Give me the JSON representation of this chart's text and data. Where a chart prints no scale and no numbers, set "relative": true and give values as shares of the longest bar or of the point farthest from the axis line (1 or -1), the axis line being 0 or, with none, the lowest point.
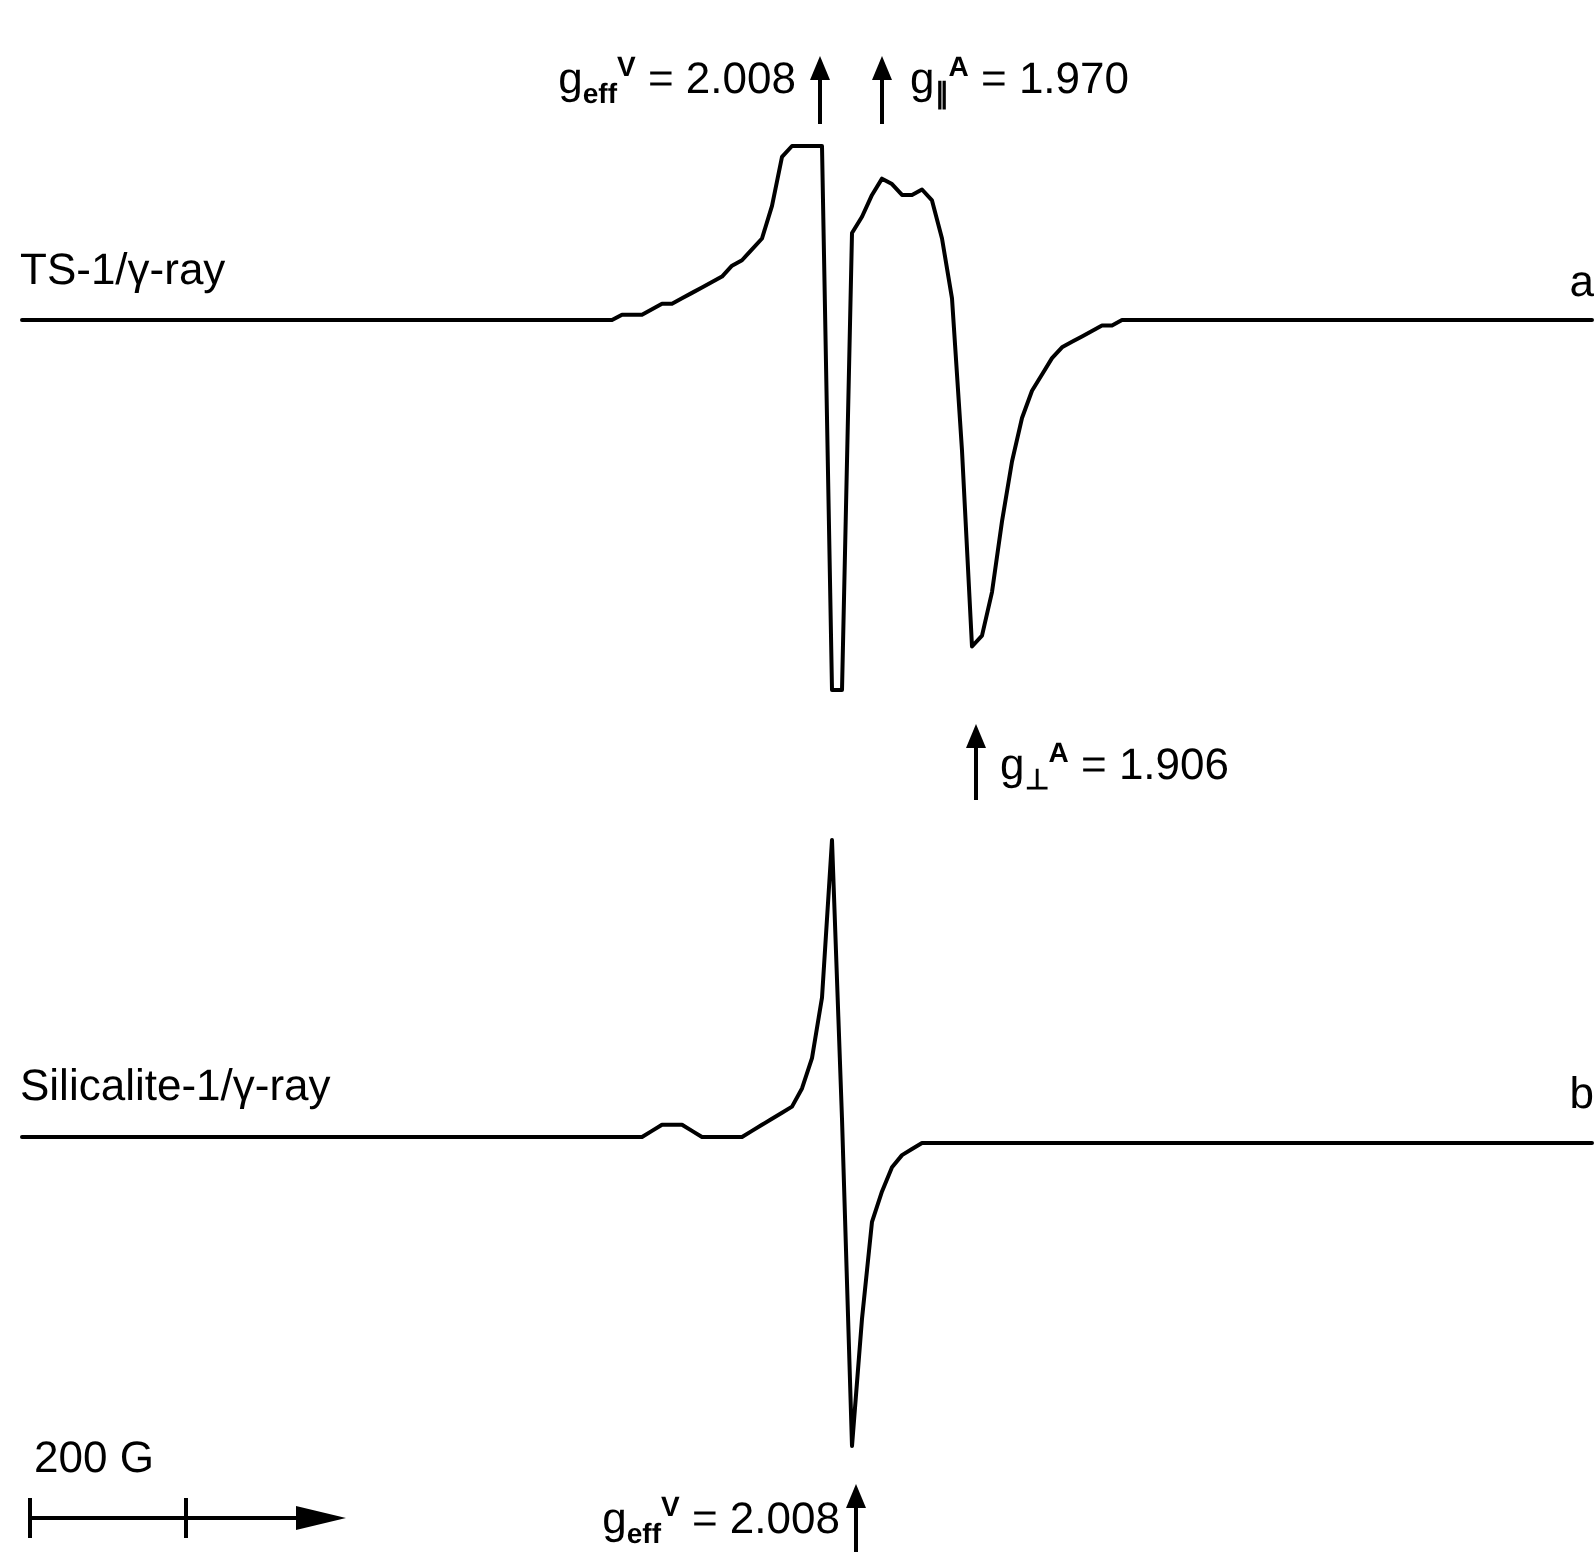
{
  "chart_data": [
    {
      "type": "line",
      "relative": true,
      "categories": [
        null,
        null,
        null,
        null,
        null,
        null,
        null,
        null,
        null,
        null,
        null,
        null,
        null,
        null,
        null,
        null,
        null,
        null,
        null,
        null,
        null,
        null,
        null,
        null,
        null,
        null,
        null,
        null,
        null,
        null,
        null,
        null,
        null,
        null,
        null,
        null,
        null,
        null,
        null,
        null,
        null,
        null,
        null,
        null,
        null,
        null,
        null,
        null,
        null,
        null,
        null,
        null,
        null,
        null,
        null,
        null,
        null,
        null,
        null,
        null,
        null,
        null,
        null,
        null,
        null,
        null,
        null,
        null,
        null,
        null,
        null,
        null,
        null,
        null,
        null,
        null,
        null,
        null,
        null,
        null,
        null,
        null,
        null,
        null,
        null,
        null,
        null,
        null,
        null,
        null,
        null,
        null,
        null,
        null,
        null,
        null,
        null,
        null,
        null,
        null,
        null,
        null,
        null,
        null,
        null,
        null,
        null,
        null,
        null,
        null,
        null,
        null,
        null,
        null,
        null,
        null,
        null,
        null,
        null,
        null,
        null,
        null,
        null,
        null,
        null,
        null,
        null,
        null,
        null,
        null,
        null,
        null,
        null,
        null,
        null,
        null,
        null,
        null,
        null,
        null,
        null,
        null,
        null,
        null,
        null,
        null,
        null,
        null,
        null,
        null,
        null,
        null,
        null,
        null,
        null,
        null,
        null,
        null
      ],
      "series": [
        {
          "name": "TS-1/γ-ray",
          "color": "#000000",
          "values": [
            0.68,
            0.68,
            0.68,
            0.68,
            0.68,
            0.68,
            0.68,
            0.68,
            0.68,
            0.68,
            0.68,
            0.68,
            0.68,
            0.68,
            0.68,
            0.68,
            0.68,
            0.68,
            0.68,
            0.68,
            0.68,
            0.68,
            0.68,
            0.68,
            0.68,
            0.68,
            0.68,
            0.68,
            0.68,
            0.68,
            0.68,
            0.68,
            0.68,
            0.68,
            0.68,
            0.68,
            0.68,
            0.68,
            0.68,
            0.68,
            0.68,
            0.68,
            0.68,
            0.68,
            0.68,
            0.68,
            0.68,
            0.68,
            0.68,
            0.68,
            0.68,
            0.68,
            0.68,
            0.68,
            0.68,
            0.68,
            0.68,
            0.68,
            0.68,
            0.68,
            0.69,
            0.69,
            0.69,
            0.7,
            0.71,
            0.71,
            0.72,
            0.73,
            0.74,
            0.75,
            0.76,
            0.78,
            0.79,
            0.81,
            0.83,
            0.89,
            0.98,
            1,
            1,
            1,
            1,
            0,
            0,
            0.84,
            0.87,
            0.91,
            0.94,
            0.93,
            0.91,
            0.91,
            0.92,
            0.9,
            0.83,
            0.72,
            0.44,
            0.08,
            0.1,
            0.18,
            0.31,
            0.42,
            0.5,
            0.55,
            0.58,
            0.61,
            0.63,
            0.64,
            0.65,
            0.66,
            0.67,
            0.67,
            0.68,
            0.68,
            0.68,
            0.68,
            0.68,
            0.68,
            0.68,
            0.68,
            0.68,
            0.68,
            0.68,
            0.68,
            0.68,
            0.68,
            0.68,
            0.68,
            0.68,
            0.68,
            0.68,
            0.68,
            0.68,
            0.68,
            0.68,
            0.68,
            0.68,
            0.68,
            0.68,
            0.68,
            0.68,
            0.68,
            0.68,
            0.68,
            0.68,
            0.68,
            0.68,
            0.68,
            0.68,
            0.68,
            0.68,
            0.68,
            0.68,
            0.68,
            0.68,
            0.68,
            0.68,
            0.68,
            0.68,
            0.68
          ]
        }
      ],
      "annotations": [
        "g$_{eff}$$^{V}$ = 2.008",
        "g$_{∥}$$^{A}$ = 1.970",
        "g$_{⊥}$$^{A}$ = 1.906",
        "a"
      ]
    },
    {
      "type": "line",
      "relative": true,
      "categories": [
        null,
        null,
        null,
        null,
        null,
        null,
        null,
        null,
        null,
        null,
        null,
        null,
        null,
        null,
        null,
        null,
        null,
        null,
        null,
        null,
        null,
        null,
        null,
        null,
        null,
        null,
        null,
        null,
        null,
        null,
        null,
        null,
        null,
        null,
        null,
        null,
        null,
        null,
        null,
        null,
        null,
        null,
        null,
        null,
        null,
        null,
        null,
        null,
        null,
        null,
        null,
        null,
        null,
        null,
        null,
        null,
        null,
        null,
        null,
        null,
        null,
        null,
        null,
        null,
        null,
        null,
        null,
        null,
        null,
        null,
        null,
        null,
        null,
        null,
        null,
        null,
        null,
        null,
        null,
        null,
        null,
        null,
        null,
        null,
        null,
        null,
        null,
        null,
        null,
        null,
        null,
        null,
        null,
        null,
        null,
        null,
        null,
        null,
        null,
        null,
        null,
        null,
        null,
        null,
        null,
        null,
        null,
        null,
        null,
        null,
        null,
        null,
        null,
        null,
        null,
        null,
        null,
        null,
        null,
        null,
        null,
        null,
        null,
        null,
        null,
        null,
        null,
        null,
        null,
        null,
        null,
        null,
        null,
        null,
        null,
        null,
        null,
        null,
        null,
        null,
        null,
        null,
        null,
        null,
        null,
        null,
        null,
        null,
        null,
        null,
        null,
        null,
        null,
        null,
        null,
        null,
        null,
        null
      ],
      "series": [
        {
          "name": "Silicalite-1/γ-ray",
          "color": "#000000",
          "values": [
            0.51,
            0.51,
            0.51,
            0.51,
            0.51,
            0.51,
            0.51,
            0.51,
            0.51,
            0.51,
            0.51,
            0.51,
            0.51,
            0.51,
            0.51,
            0.51,
            0.51,
            0.51,
            0.51,
            0.51,
            0.51,
            0.51,
            0.51,
            0.51,
            0.51,
            0.51,
            0.51,
            0.51,
            0.51,
            0.51,
            0.51,
            0.51,
            0.51,
            0.51,
            0.51,
            0.51,
            0.51,
            0.51,
            0.51,
            0.51,
            0.51,
            0.51,
            0.51,
            0.51,
            0.51,
            0.51,
            0.51,
            0.51,
            0.51,
            0.51,
            0.51,
            0.51,
            0.51,
            0.51,
            0.51,
            0.51,
            0.51,
            0.51,
            0.51,
            0.51,
            0.51,
            0.51,
            0.51,
            0.52,
            0.53,
            0.53,
            0.53,
            0.52,
            0.51,
            0.51,
            0.51,
            0.51,
            0.51,
            0.52,
            0.53,
            0.54,
            0.55,
            0.56,
            0.59,
            0.64,
            0.74,
            1,
            0.54,
            0,
            0.21,
            0.37,
            0.42,
            0.46,
            0.48,
            0.49,
            0.5,
            0.5,
            0.5,
            0.5,
            0.5,
            0.5,
            0.5,
            0.5,
            0.5,
            0.5,
            0.5,
            0.5,
            0.5,
            0.5,
            0.5,
            0.5,
            0.5,
            0.5,
            0.5,
            0.5,
            0.5,
            0.5,
            0.5,
            0.5,
            0.5,
            0.5,
            0.5,
            0.5,
            0.5,
            0.5,
            0.5,
            0.5,
            0.5,
            0.5,
            0.5,
            0.5,
            0.5,
            0.5,
            0.5,
            0.5,
            0.5,
            0.5,
            0.5,
            0.5,
            0.5,
            0.5,
            0.5,
            0.5,
            0.5,
            0.5,
            0.5,
            0.5,
            0.5,
            0.5,
            0.5,
            0.5,
            0.5,
            0.5,
            0.5,
            0.5,
            0.5,
            0.5,
            0.5,
            0.5,
            0.5,
            0.5,
            0.5,
            0.5
          ]
        }
      ],
      "annotations": [
        "b",
        "200 G",
        "g$_{eff}$$^{V}$ = 2.008"
      ]
    }
  ]
}
